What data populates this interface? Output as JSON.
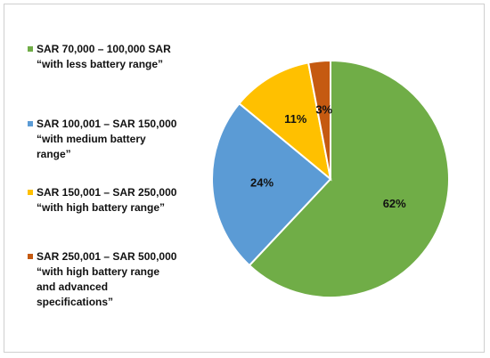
{
  "chart_data": {
    "type": "pie",
    "title": "",
    "slices": [
      {
        "label": "SAR 70,000 – 100,000 SAR “with less battery range”",
        "value": 62,
        "display": "62%",
        "color": "#70ad47"
      },
      {
        "label": "SAR 100,001 – SAR 150,000 “with medium battery range”",
        "value": 24,
        "display": "24%",
        "color": "#5b9bd5"
      },
      {
        "label": "SAR 150,001 – SAR 250,000 “with high battery range”",
        "value": 11,
        "display": "11%",
        "color": "#ffc000"
      },
      {
        "label": "SAR 250,001 – SAR 500,000 “with high battery range and advanced specifications”",
        "value": 3,
        "display": "3%",
        "color": "#c55a11"
      }
    ],
    "legend_position": "left"
  }
}
